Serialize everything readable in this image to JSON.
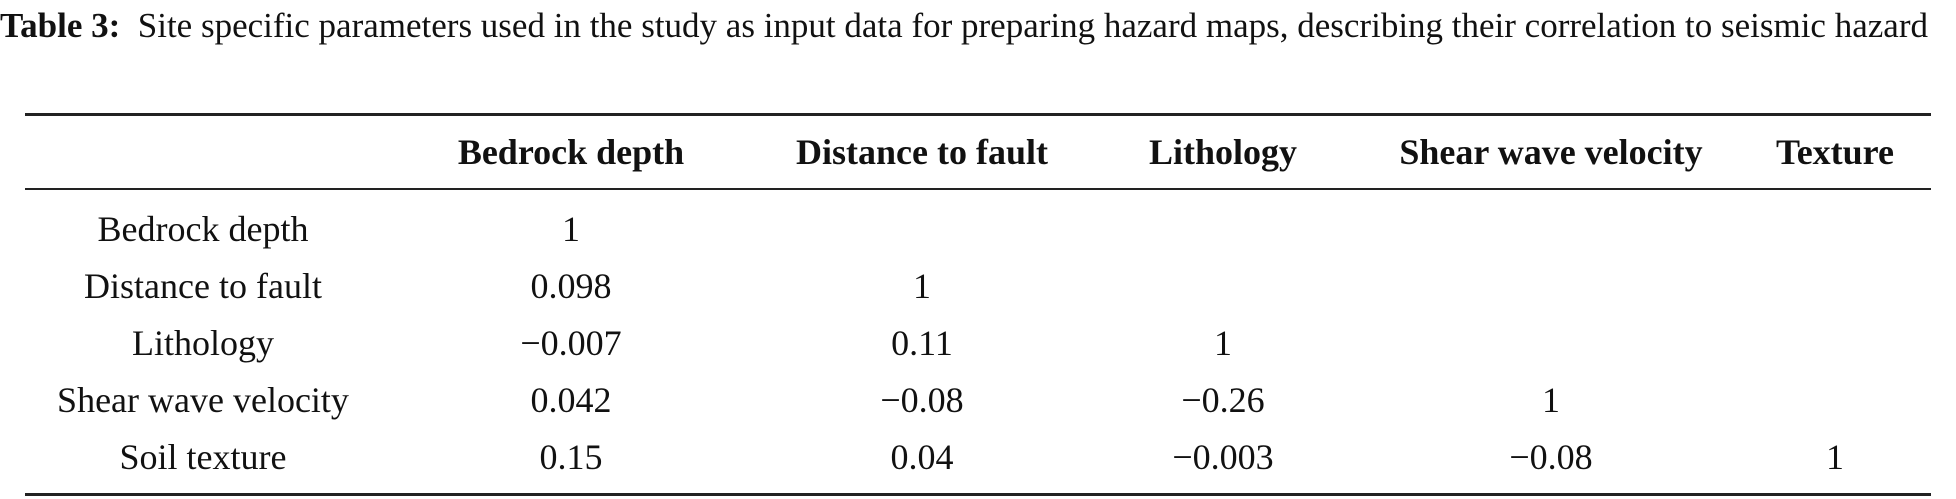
{
  "caption": {
    "label": "Table 3:",
    "text": "Site specific parameters used in the study as input data for preparing hazard maps, describing their correlation to seismic hazard"
  },
  "table": {
    "columns": [
      "",
      "Bedrock depth",
      "Distance to fault",
      "Lithology",
      "Shear wave velocity",
      "Texture"
    ],
    "rows": [
      [
        "Bedrock depth",
        "1",
        "",
        "",
        "",
        ""
      ],
      [
        "Distance to fault",
        "0.098",
        "1",
        "",
        "",
        ""
      ],
      [
        "Lithology",
        "−0.007",
        "0.11",
        "1",
        "",
        ""
      ],
      [
        "Shear wave velocity",
        "0.042",
        "−0.08",
        "−0.26",
        "1",
        ""
      ],
      [
        "Soil texture",
        "0.15",
        "0.04",
        "−0.003",
        "−0.08",
        "1"
      ]
    ]
  }
}
